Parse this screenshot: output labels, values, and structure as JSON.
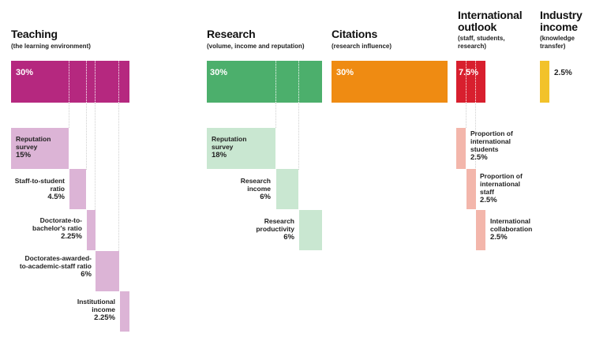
{
  "colors": {
    "teaching": "#b5287f",
    "teaching_light": "#dcb4d6",
    "research": "#4caf6c",
    "research_light": "#c9e7d1",
    "citations": "#ef8b12",
    "international": "#d81f2e",
    "international_light": "#f3b6ab",
    "industry": "#f2c22a"
  },
  "teaching": {
    "title": "Teaching",
    "subtitle": "(the learning environment)",
    "pct": "30%",
    "items": [
      {
        "label": "Reputation survey",
        "value": "15%"
      },
      {
        "label": "Staff-to-student ratio",
        "value": "4.5%"
      },
      {
        "label": "Doctorate-to-bachelor's ratio",
        "value": "2.25%"
      },
      {
        "label": "Doctorates-awarded-to-academic-staff ratio",
        "value": "6%"
      },
      {
        "label": "Institutional income",
        "value": "2.25%"
      }
    ]
  },
  "research": {
    "title": "Research",
    "subtitle": "(volume, income and reputation)",
    "pct": "30%",
    "items": [
      {
        "label": "Reputation survey",
        "value": "18%"
      },
      {
        "label": "Research income",
        "value": "6%"
      },
      {
        "label": "Research productivity",
        "value": "6%"
      }
    ]
  },
  "citations": {
    "title": "Citations",
    "subtitle": "(research influence)",
    "pct": "30%"
  },
  "international": {
    "title": "International outlook",
    "subtitle": "(staff, students, research)",
    "pct": "7.5%",
    "items": [
      {
        "label": "Proportion of international students",
        "value": "2.5%"
      },
      {
        "label": "Proportion of international staff",
        "value": "2.5%"
      },
      {
        "label": "International collaboration",
        "value": "2.5%"
      }
    ]
  },
  "industry": {
    "title": "Industry income",
    "subtitle": "(knowledge transfer)",
    "pct": "2.5%"
  }
}
